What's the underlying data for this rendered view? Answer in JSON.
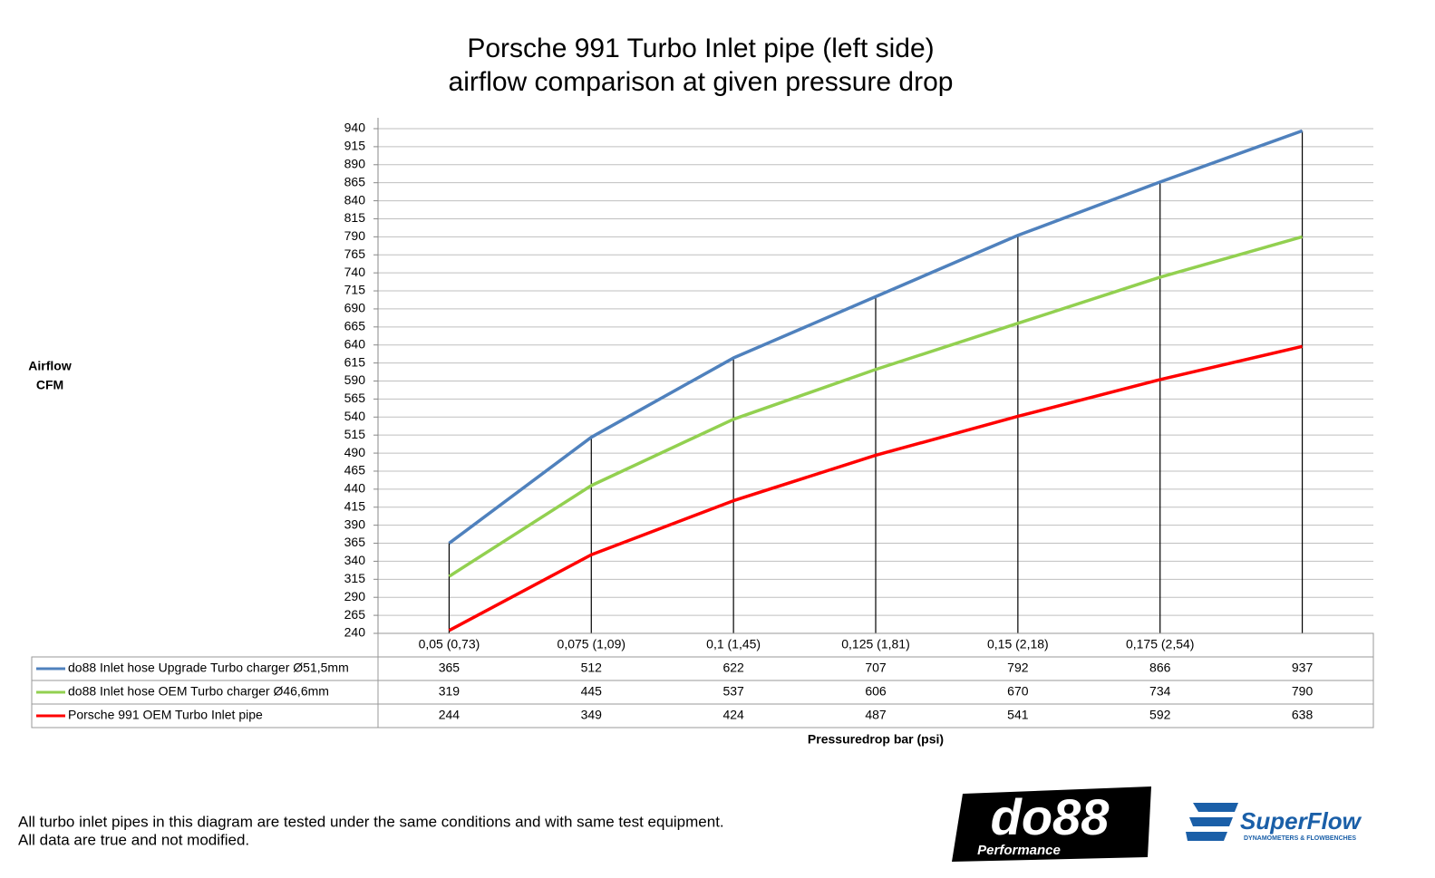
{
  "chart_data": {
    "type": "line",
    "title": [
      "Porsche 991 Turbo Inlet pipe (left side)",
      "airflow comparison at given pressure drop"
    ],
    "ylabel": [
      "Airflow",
      "CFM"
    ],
    "xlabel": "Pressuredrop bar (psi)",
    "categories": [
      "0,05 (0,73)",
      "0,075 (1,09)",
      "0,1 (1,45)",
      "0,125 (1,81)",
      "0,15 (2,18)",
      "0,175 (2,54)",
      null
    ],
    "series": [
      {
        "name": "do88 Inlet hose Upgrade Turbo charger Ø51,5mm",
        "color": "#4f81bd",
        "values": [
          365,
          512,
          622,
          707,
          792,
          866,
          937
        ]
      },
      {
        "name": "do88 Inlet hose OEM Turbo charger Ø46,6mm",
        "color": "#92d050",
        "values": [
          319,
          445,
          537,
          606,
          670,
          734,
          790
        ]
      },
      {
        "name": "Porsche 991 OEM Turbo Inlet pipe",
        "color": "#ff0000",
        "values": [
          244,
          349,
          424,
          487,
          541,
          592,
          638
        ]
      }
    ],
    "ylim": [
      240,
      940
    ],
    "yticks": [
      240,
      265,
      290,
      315,
      340,
      365,
      390,
      415,
      440,
      465,
      490,
      515,
      540,
      565,
      590,
      615,
      640,
      665,
      690,
      715,
      740,
      765,
      790,
      815,
      840,
      865,
      890,
      915,
      940
    ],
    "grid": true,
    "drop_lines": true
  },
  "footnote": [
    "All turbo inlet pipes in this diagram are tested under the same conditions and with same test equipment.",
    "All data are true and not modified."
  ],
  "logos": {
    "do88": "do88",
    "do88_sub": "Performance",
    "superflow": "SuperFlow",
    "superflow_sub": "DYNAMOMETERS & FLOWBENCHES"
  }
}
